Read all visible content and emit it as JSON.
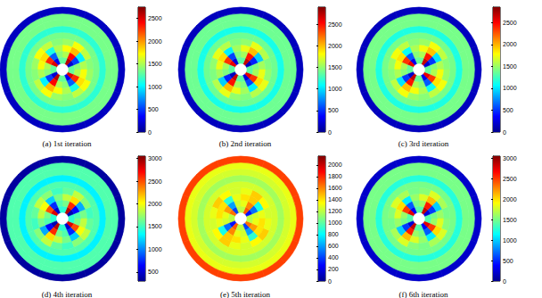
{
  "chart_data": [
    {
      "type": "polar_heatmap",
      "title": "(a) 1st iteration",
      "colorbar": {
        "range": [
          0,
          2750
        ],
        "ticks": [
          0,
          500,
          1000,
          1500,
          2000,
          2500
        ]
      },
      "cells": [
        [
          null,
          null,
          null,
          null,
          null,
          null,
          null,
          null,
          null,
          null,
          null,
          null,
          null,
          null,
          null,
          null
        ],
        [
          1300,
          200,
          2600,
          1300,
          1300,
          300,
          2500,
          1300,
          1300,
          200,
          2600,
          1300,
          1300,
          300,
          2500,
          1300
        ],
        [
          1400,
          500,
          2400,
          1500,
          1400,
          600,
          2300,
          1500,
          1400,
          500,
          2400,
          1500,
          1400,
          600,
          2300,
          1500
        ],
        [
          1500,
          1000,
          1900,
          1700,
          1500,
          1100,
          1800,
          1700,
          1500,
          1000,
          1900,
          1700,
          1500,
          1100,
          1800,
          1700
        ],
        [
          1400,
          1550,
          1700,
          1450,
          1400,
          1550,
          1700,
          1450,
          1400,
          1550,
          1700,
          1450,
          1400,
          1550,
          1700,
          1450
        ],
        [
          1350,
          1350,
          1350,
          1350,
          1350,
          1350,
          1350,
          1350,
          1350,
          1350,
          1350,
          1350,
          1350,
          1350,
          1350,
          1350
        ],
        [
          1150,
          1150,
          1150,
          1150,
          1150,
          1150,
          1150,
          1150,
          1150,
          1150,
          1150,
          1150,
          1150,
          1150,
          1150,
          1150
        ],
        [
          1350,
          1350,
          1350,
          1350,
          1350,
          1350,
          1350,
          1350,
          1350,
          1350,
          1350,
          1350,
          1350,
          1350,
          1350,
          1350
        ],
        [
          1350,
          1350,
          1350,
          1350,
          1350,
          1350,
          1350,
          1350,
          1350,
          1350,
          1350,
          1350,
          1350,
          1350,
          1350,
          1350
        ],
        [
          150,
          150,
          150,
          150,
          150,
          150,
          150,
          150,
          150,
          150,
          150,
          150,
          150,
          150,
          150,
          150
        ]
      ]
    },
    {
      "type": "polar_heatmap",
      "title": "(b) 2nd iteration",
      "colorbar": {
        "range": [
          0,
          2900
        ],
        "ticks": [
          0,
          500,
          1000,
          1500,
          2000,
          2500
        ]
      },
      "cells": [
        [
          null,
          null,
          null,
          null,
          null,
          null,
          null,
          null,
          null,
          null,
          null,
          null,
          null,
          null,
          null,
          null
        ],
        [
          1350,
          150,
          2700,
          1350,
          1350,
          250,
          2600,
          1350,
          1350,
          150,
          2700,
          1350,
          1350,
          250,
          2600,
          1350
        ],
        [
          1450,
          450,
          2500,
          1550,
          1450,
          550,
          2400,
          1550,
          1450,
          450,
          2500,
          1550,
          1450,
          550,
          2400,
          1550
        ],
        [
          1550,
          950,
          2000,
          1750,
          1550,
          1050,
          1900,
          1750,
          1550,
          950,
          2000,
          1750,
          1550,
          1050,
          1900,
          1750
        ],
        [
          1450,
          1600,
          1750,
          1500,
          1450,
          1600,
          1750,
          1500,
          1450,
          1600,
          1750,
          1500,
          1450,
          1600,
          1750,
          1500
        ],
        [
          1400,
          1400,
          1400,
          1400,
          1400,
          1400,
          1400,
          1400,
          1400,
          1400,
          1400,
          1400,
          1400,
          1400,
          1400,
          1400
        ],
        [
          1150,
          1150,
          1150,
          1150,
          1150,
          1150,
          1150,
          1150,
          1150,
          1150,
          1150,
          1150,
          1150,
          1150,
          1150,
          1150
        ],
        [
          1400,
          1400,
          1400,
          1400,
          1400,
          1400,
          1400,
          1400,
          1400,
          1400,
          1400,
          1400,
          1400,
          1400,
          1400,
          1400
        ],
        [
          1400,
          1400,
          1400,
          1400,
          1400,
          1400,
          1400,
          1400,
          1400,
          1400,
          1400,
          1400,
          1400,
          1400,
          1400,
          1400
        ],
        [
          150,
          150,
          150,
          150,
          150,
          150,
          150,
          150,
          150,
          150,
          150,
          150,
          150,
          150,
          150,
          150
        ]
      ]
    },
    {
      "type": "polar_heatmap",
      "title": "(c) 3rd iteration",
      "colorbar": {
        "range": [
          0,
          2850
        ],
        "ticks": [
          0,
          500,
          1000,
          1500,
          2000,
          2500
        ]
      },
      "cells": [
        [
          null,
          null,
          null,
          null,
          null,
          null,
          null,
          null,
          null,
          null,
          null,
          null,
          null,
          null,
          null,
          null
        ],
        [
          1350,
          200,
          2650,
          1350,
          1350,
          300,
          2550,
          1350,
          1350,
          200,
          2650,
          1350,
          1350,
          300,
          2550,
          1350
        ],
        [
          1450,
          500,
          2450,
          1550,
          1450,
          600,
          2350,
          1550,
          1450,
          500,
          2450,
          1550,
          1450,
          600,
          2350,
          1550
        ],
        [
          1550,
          1000,
          1950,
          1750,
          1550,
          1100,
          1850,
          1750,
          1550,
          1000,
          1950,
          1750,
          1550,
          1100,
          1850,
          1750
        ],
        [
          1450,
          1600,
          1750,
          1500,
          1450,
          1600,
          1750,
          1500,
          1450,
          1600,
          1750,
          1500,
          1450,
          1600,
          1750,
          1500
        ],
        [
          1400,
          1400,
          1400,
          1400,
          1400,
          1400,
          1400,
          1400,
          1400,
          1400,
          1400,
          1400,
          1400,
          1400,
          1400,
          1400
        ],
        [
          1150,
          1150,
          1150,
          1150,
          1150,
          1150,
          1150,
          1150,
          1150,
          1150,
          1150,
          1150,
          1150,
          1150,
          1150,
          1150
        ],
        [
          1400,
          1400,
          1400,
          1400,
          1400,
          1400,
          1400,
          1400,
          1400,
          1400,
          1400,
          1400,
          1400,
          1400,
          1400,
          1400
        ],
        [
          1400,
          1400,
          1400,
          1400,
          1400,
          1400,
          1400,
          1400,
          1400,
          1400,
          1400,
          1400,
          1400,
          1400,
          1400,
          1400
        ],
        [
          150,
          150,
          150,
          150,
          150,
          150,
          150,
          150,
          150,
          150,
          150,
          150,
          150,
          150,
          150,
          150
        ]
      ]
    },
    {
      "type": "polar_heatmap",
      "title": "(d) 4th iteration",
      "colorbar": {
        "range": [
          300,
          3050
        ],
        "ticks": [
          500,
          1000,
          1500,
          2000,
          2500,
          3000
        ]
      },
      "cells": [
        [
          null,
          null,
          null,
          null,
          null,
          null,
          null,
          null,
          null,
          null,
          null,
          null,
          null,
          null,
          null,
          null
        ],
        [
          1450,
          400,
          2900,
          1450,
          1450,
          500,
          2800,
          1450,
          1450,
          400,
          2900,
          1450,
          1450,
          500,
          2800,
          1450
        ],
        [
          1550,
          650,
          2600,
          1650,
          1550,
          750,
          2500,
          1650,
          1550,
          650,
          2600,
          1650,
          1550,
          750,
          2500,
          1650
        ],
        [
          1650,
          1100,
          2100,
          1850,
          1650,
          1200,
          2000,
          1850,
          1650,
          1100,
          2100,
          1850,
          1650,
          1200,
          2000,
          1850
        ],
        [
          1500,
          1700,
          1850,
          1600,
          1500,
          1700,
          1850,
          1600,
          1500,
          1700,
          1850,
          1600,
          1500,
          1700,
          1850,
          1600
        ],
        [
          1550,
          1550,
          1550,
          1550,
          1550,
          1550,
          1550,
          1550,
          1550,
          1550,
          1550,
          1550,
          1550,
          1550,
          1550,
          1550
        ],
        [
          1300,
          1300,
          1300,
          1300,
          1300,
          1300,
          1300,
          1300,
          1300,
          1300,
          1300,
          1300,
          1300,
          1300,
          1300,
          1300
        ],
        [
          1550,
          1550,
          1550,
          1550,
          1550,
          1550,
          1550,
          1550,
          1550,
          1550,
          1550,
          1550,
          1550,
          1550,
          1550,
          1550
        ],
        [
          1550,
          1550,
          1550,
          1550,
          1550,
          1550,
          1550,
          1550,
          1550,
          1550,
          1550,
          1550,
          1550,
          1550,
          1550,
          1550
        ],
        [
          350,
          350,
          350,
          350,
          350,
          350,
          350,
          350,
          350,
          350,
          350,
          350,
          350,
          350,
          350,
          350
        ]
      ]
    },
    {
      "type": "polar_heatmap",
      "title": "(e) 5th iteration",
      "colorbar": {
        "range": [
          0,
          2150
        ],
        "ticks": [
          0,
          200,
          400,
          600,
          800,
          1000,
          1200,
          1400,
          1600,
          1800,
          2000
        ]
      },
      "cells": [
        [
          null,
          null,
          null,
          null,
          null,
          null,
          null,
          null,
          null,
          null,
          null,
          null,
          null,
          null,
          null,
          null
        ],
        [
          1200,
          300,
          1700,
          1200,
          1200,
          400,
          1650,
          1200,
          1200,
          300,
          1700,
          1200,
          1200,
          400,
          1650,
          1200
        ],
        [
          1250,
          500,
          1600,
          1300,
          1250,
          600,
          1550,
          1300,
          1250,
          500,
          1600,
          1300,
          1250,
          600,
          1550,
          1300
        ],
        [
          1300,
          850,
          1450,
          1400,
          1300,
          900,
          1400,
          1400,
          1300,
          850,
          1450,
          1400,
          1300,
          900,
          1400,
          1400
        ],
        [
          1250,
          1350,
          1450,
          1300,
          1250,
          1350,
          1450,
          1300,
          1250,
          1350,
          1450,
          1300,
          1250,
          1350,
          1450,
          1300
        ],
        [
          1250,
          1250,
          1250,
          1250,
          1250,
          1250,
          1250,
          1250,
          1250,
          1250,
          1250,
          1250,
          1250,
          1250,
          1250,
          1250
        ],
        [
          1150,
          1150,
          1150,
          1150,
          1150,
          1150,
          1150,
          1150,
          1150,
          1150,
          1150,
          1150,
          1150,
          1150,
          1150,
          1150
        ],
        [
          1250,
          1250,
          1250,
          1250,
          1250,
          1250,
          1250,
          1250,
          1250,
          1250,
          1250,
          1250,
          1250,
          1250,
          1250,
          1250
        ],
        [
          1300,
          1300,
          1300,
          1300,
          1300,
          1300,
          1300,
          1300,
          1300,
          1300,
          1300,
          1300,
          1300,
          1300,
          1300,
          1300
        ],
        [
          1750,
          1750,
          1750,
          1750,
          1750,
          1750,
          1750,
          1750,
          1750,
          1750,
          1750,
          1750,
          1750,
          1750,
          1750,
          1750
        ]
      ]
    },
    {
      "type": "polar_heatmap",
      "title": "(f) 6th iteration",
      "colorbar": {
        "range": [
          0,
          3050
        ],
        "ticks": [
          0,
          500,
          1000,
          1500,
          2000,
          2500,
          3000
        ]
      },
      "cells": [
        [
          null,
          null,
          null,
          null,
          null,
          null,
          null,
          null,
          null,
          null,
          null,
          null,
          null,
          null,
          null,
          null
        ],
        [
          1400,
          250,
          2850,
          1400,
          1400,
          350,
          2750,
          1400,
          1400,
          250,
          2850,
          1400,
          1400,
          350,
          2750,
          1400
        ],
        [
          1500,
          550,
          2600,
          1600,
          1500,
          650,
          2500,
          1600,
          1500,
          550,
          2600,
          1600,
          1500,
          650,
          2500,
          1600
        ],
        [
          1600,
          1000,
          2100,
          1800,
          1600,
          1100,
          2000,
          1800,
          1600,
          1000,
          2100,
          1800,
          1600,
          1100,
          2000,
          1800
        ],
        [
          1500,
          1650,
          1800,
          1550,
          1500,
          1650,
          1800,
          1550,
          1500,
          1650,
          1800,
          1550,
          1500,
          1650,
          1800,
          1550
        ],
        [
          1500,
          1500,
          1500,
          1500,
          1500,
          1500,
          1500,
          1500,
          1500,
          1500,
          1500,
          1500,
          1500,
          1500,
          1500,
          1500
        ],
        [
          1250,
          1250,
          1250,
          1250,
          1250,
          1250,
          1250,
          1250,
          1250,
          1250,
          1250,
          1250,
          1250,
          1250,
          1250,
          1250
        ],
        [
          1500,
          1500,
          1500,
          1500,
          1500,
          1500,
          1500,
          1500,
          1500,
          1500,
          1500,
          1500,
          1500,
          1500,
          1500,
          1500
        ],
        [
          1500,
          1500,
          1500,
          1500,
          1500,
          1500,
          1500,
          1500,
          1500,
          1500,
          1500,
          1500,
          1500,
          1500,
          1500,
          1500
        ],
        [
          200,
          200,
          200,
          200,
          200,
          200,
          200,
          200,
          200,
          200,
          200,
          200,
          200,
          200,
          200,
          200
        ]
      ]
    }
  ]
}
